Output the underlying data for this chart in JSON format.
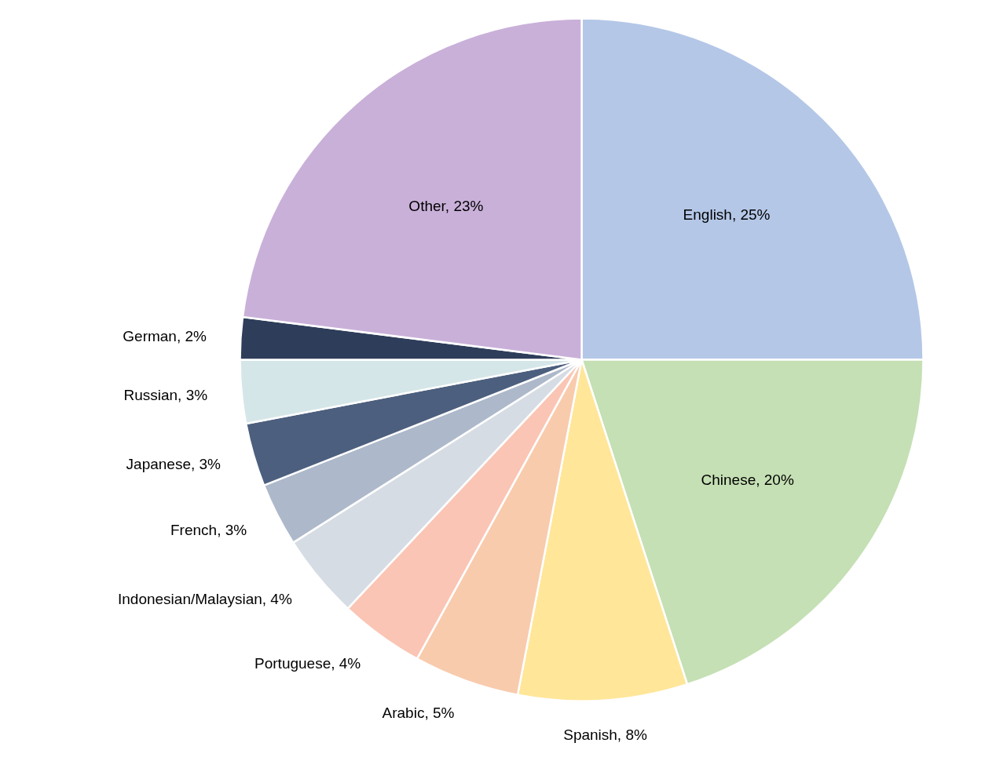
{
  "chart_data": {
    "type": "pie",
    "categories": [
      "English",
      "Chinese",
      "Spanish",
      "Arabic",
      "Portuguese",
      "Indonesian/Malaysian",
      "French",
      "Japanese",
      "Russian",
      "German",
      "Other"
    ],
    "values": [
      25,
      20,
      8,
      5,
      4,
      4,
      3,
      3,
      3,
      2,
      23
    ],
    "colors": [
      "#b4c7e7",
      "#c5e0b4",
      "#ffe699",
      "#f8cbad",
      "#fac5b4",
      "#d6dce4",
      "#adb9ca",
      "#4c5f7e",
      "#d5e6e8",
      "#2e3d5a",
      "#c9b0d9"
    ],
    "value_labels": [
      "25%",
      "20%",
      "8%",
      "5%",
      "4%",
      "4%",
      "3%",
      "3%",
      "3%",
      "2%",
      "23%"
    ]
  }
}
